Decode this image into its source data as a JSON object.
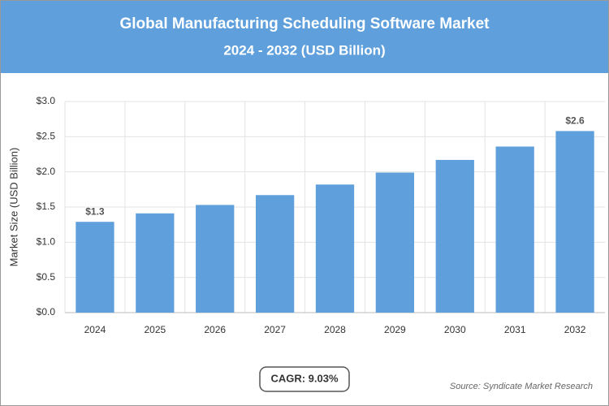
{
  "chart_data": {
    "type": "bar",
    "title": "Global Manufacturing Scheduling Software Market",
    "subtitle": "2024 - 2032 (USD Billion)",
    "y_label": "Market Size (USD Billion)",
    "categories": [
      "2024",
      "2025",
      "2026",
      "2027",
      "2028",
      "2029",
      "2030",
      "2031",
      "2032"
    ],
    "values": [
      1.29,
      1.41,
      1.53,
      1.67,
      1.82,
      1.99,
      2.17,
      2.36,
      2.58
    ],
    "value_labels": [
      "$1.3",
      null,
      null,
      null,
      null,
      null,
      null,
      null,
      "$2.6"
    ],
    "color": "#5fa0dc",
    "ylim": [
      0,
      3
    ],
    "yticks": [
      {
        "value": 0,
        "label": "$0.0"
      },
      {
        "value": 0.5,
        "label": "$0.5"
      },
      {
        "value": 1,
        "label": "$1.0"
      },
      {
        "value": 1.5,
        "label": "$1.5"
      },
      {
        "value": 2,
        "label": "$2.0"
      },
      {
        "value": 2.5,
        "label": "$2.5"
      },
      {
        "value": 3,
        "label": "$3.0"
      }
    ],
    "grid": true,
    "cagr": "CAGR: 9.03%",
    "source": "Source: Syndicate Market Research"
  }
}
